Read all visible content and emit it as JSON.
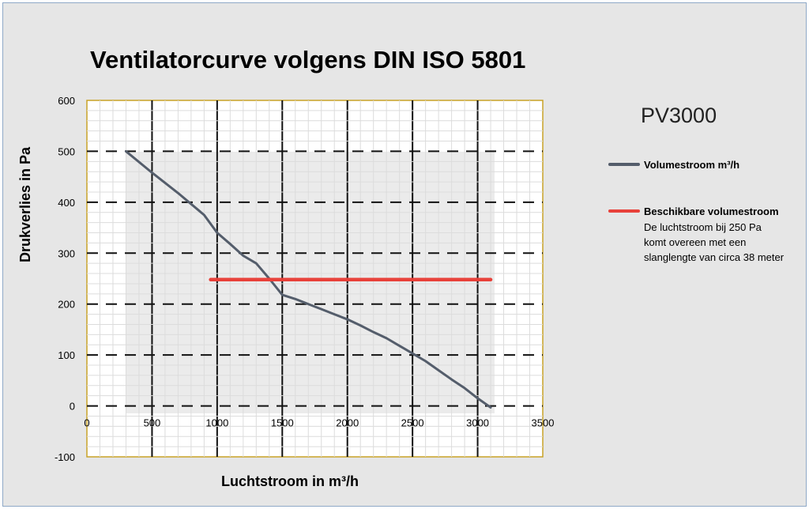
{
  "chart_data": {
    "type": "line",
    "title": "Ventilatorcurve volgens DIN ISO 5801",
    "model": "PV3000",
    "xlabel": "Luchtstroom in m³/h",
    "ylabel": "Drukverlies in Pa",
    "xlim": [
      0,
      3500
    ],
    "ylim": [
      -100,
      600
    ],
    "x_ticks": [
      "0",
      "500",
      "1000",
      "1500",
      "2000",
      "2500",
      "3000",
      "3500"
    ],
    "y_ticks": [
      "-100",
      "0",
      "100",
      "200",
      "300",
      "400",
      "500",
      "600"
    ],
    "grid": true,
    "legend_position": "right",
    "series": [
      {
        "name": "Volumestroom m³/h",
        "color": "#545d6b",
        "x": [
          300,
          500,
          700,
          900,
          1000,
          1100,
          1200,
          1300,
          1400,
          1500,
          1600,
          1700,
          1800,
          1900,
          2000,
          2100,
          2200,
          2300,
          2400,
          2500,
          2600,
          2700,
          2800,
          2900,
          3000,
          3100
        ],
        "y": [
          500,
          458,
          418,
          375,
          340,
          318,
          295,
          280,
          250,
          218,
          210,
          200,
          190,
          180,
          170,
          158,
          145,
          133,
          118,
          103,
          88,
          70,
          52,
          35,
          15,
          -3
        ]
      },
      {
        "name": "Beschikbare volumestroom",
        "color": "#e8413a",
        "x": [
          950,
          3100
        ],
        "y": [
          248,
          248
        ]
      }
    ],
    "annotation": [
      "De luchtstroom bij 250 Pa",
      "komt overeen met een",
      "slanglengte van circa 38 meter"
    ]
  }
}
